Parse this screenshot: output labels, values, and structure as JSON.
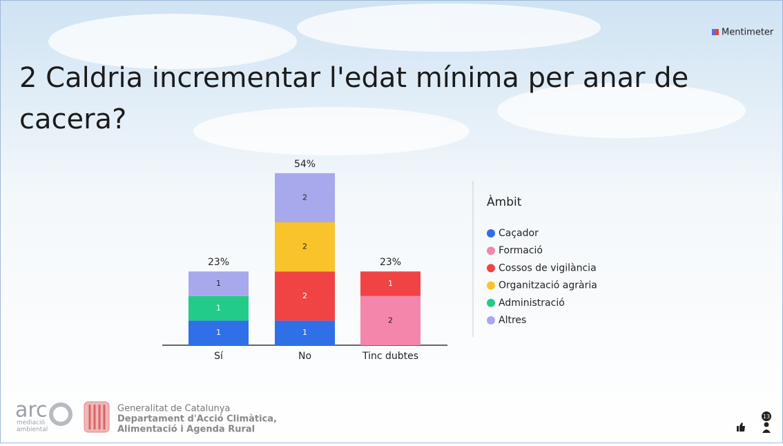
{
  "brand": "Mentimeter",
  "chart_data": {
    "type": "stacked-bar",
    "title": "2 Caldria incrementar l'edat mínima per anar de cacera?",
    "categories": [
      "Sí",
      "No",
      "Tinc dubtes"
    ],
    "series": [
      {
        "name": "Caçador",
        "color": "#2f6fe8",
        "values": [
          1,
          1,
          null
        ]
      },
      {
        "name": "Formació",
        "color": "#f586ab",
        "values": [
          null,
          null,
          2
        ]
      },
      {
        "name": "Cossos de vigilància",
        "color": "#f04444",
        "values": [
          null,
          2,
          1
        ]
      },
      {
        "name": "Organització agrària",
        "color": "#f9c32b",
        "values": [
          null,
          2,
          null
        ]
      },
      {
        "name": "Administració",
        "color": "#22cc88",
        "values": [
          1,
          null,
          null
        ]
      },
      {
        "name": "Altres",
        "color": "#a8a8ec",
        "values": [
          1,
          2,
          null
        ]
      }
    ],
    "percent_labels": [
      {
        "value": 23,
        "label": "23%"
      },
      {
        "value": 54,
        "label": "54%"
      },
      {
        "value": 23,
        "label": "23%"
      }
    ],
    "legend_title": "Àmbit",
    "legend": "right"
  },
  "footer": {
    "arc": "arc",
    "arc_sub_1": "mediació",
    "arc_sub_2": "ambiental",
    "org_line_1": "Generalitat de Catalunya",
    "org_line_2": "Departament d'Acció Climàtica,",
    "org_line_3": "Alimentació i Agenda Rural",
    "participants": "13"
  }
}
